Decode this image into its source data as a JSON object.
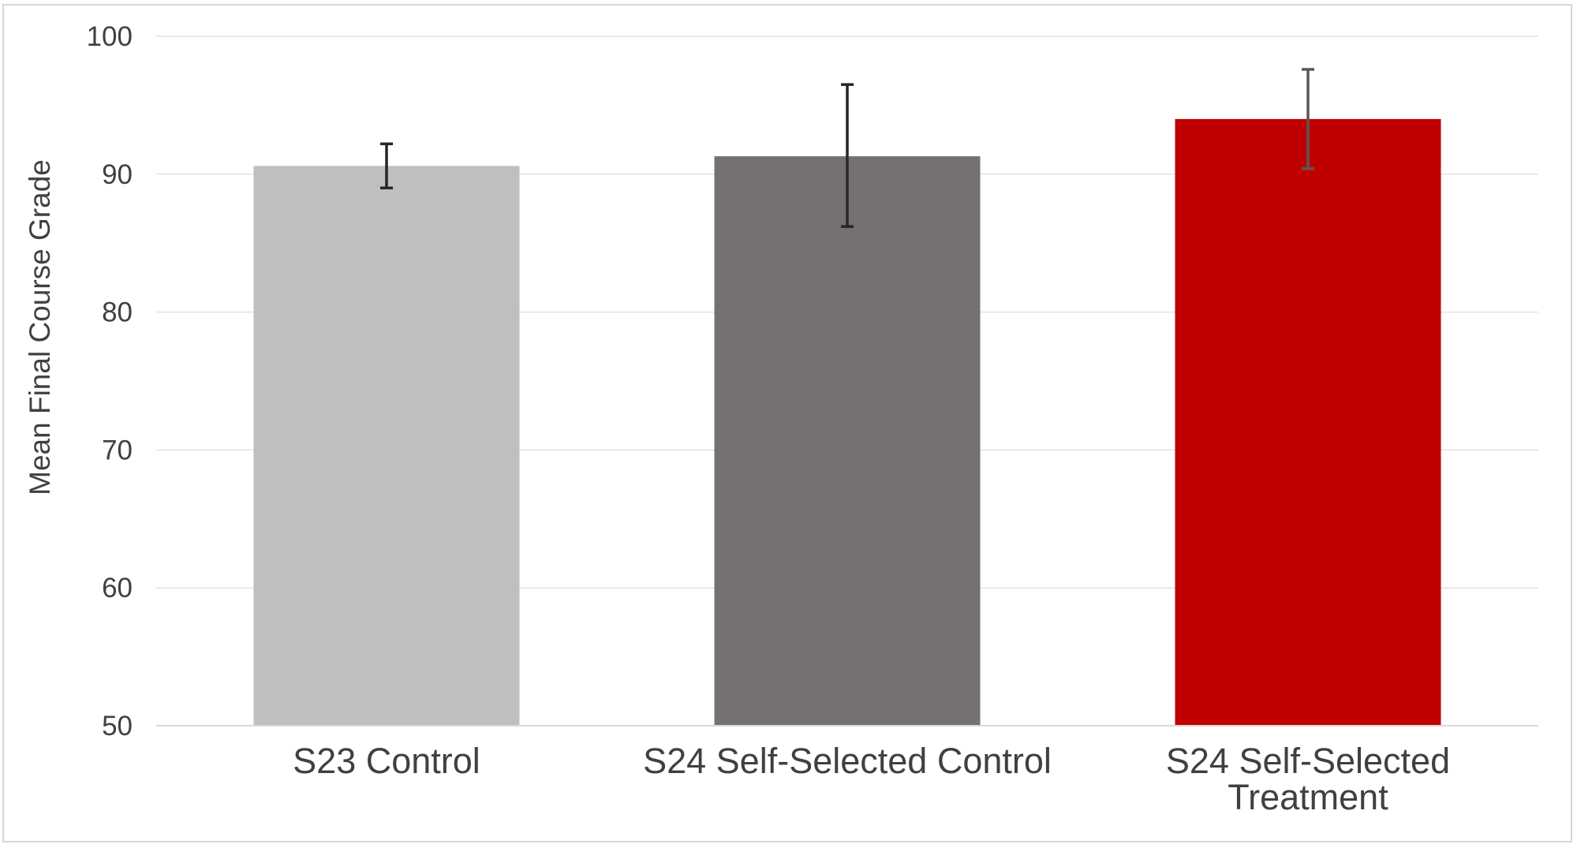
{
  "chart_data": {
    "type": "bar",
    "title": "",
    "xlabel": "",
    "ylabel": "Mean Final Course Grade",
    "ylim": [
      50,
      100
    ],
    "yticks": [
      50,
      60,
      70,
      80,
      90,
      100
    ],
    "grid": true,
    "legend": "none",
    "categories": [
      [
        "S23 Control"
      ],
      [
        "S24 Self-Selected Control"
      ],
      [
        "S24 Self-Selected",
        "Treatment"
      ]
    ],
    "values": [
      90.6,
      91.3,
      94.0
    ],
    "error_low": [
      89.0,
      86.2,
      90.4
    ],
    "error_high": [
      92.2,
      96.5,
      97.6
    ],
    "colors": [
      "#bfbfbf",
      "#767171",
      "#c00000"
    ],
    "error_colors": [
      "#262626",
      "#262626",
      "#595959"
    ],
    "gridline_color": "#e3e3e3",
    "text_color": "#404040"
  }
}
